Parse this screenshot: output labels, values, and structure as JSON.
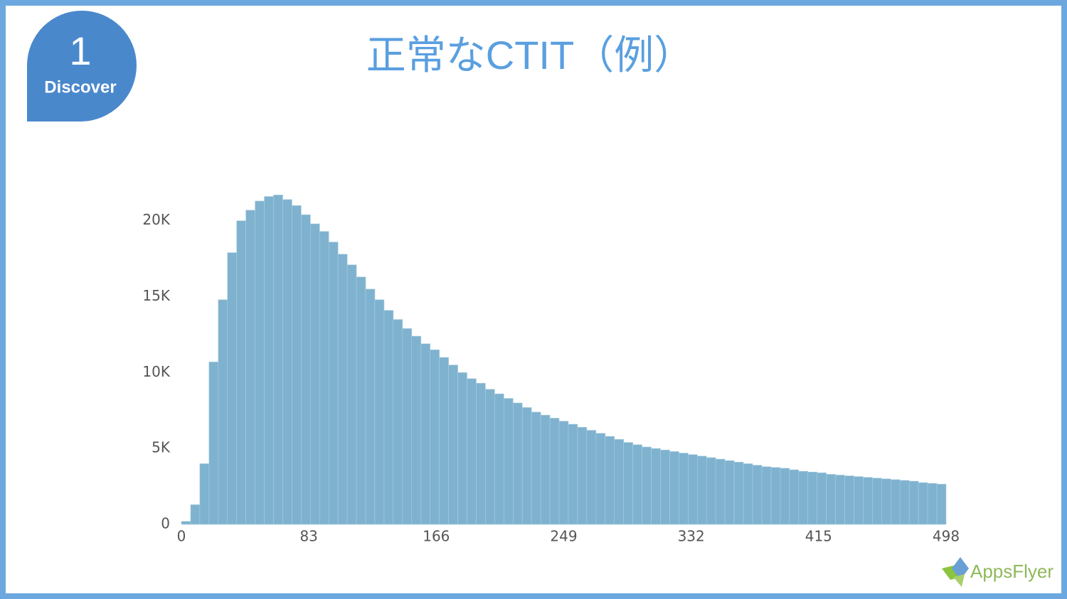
{
  "badge": {
    "number": "1",
    "label": "Discover"
  },
  "logo": "AppsFlyer",
  "chart_data": {
    "type": "histogram",
    "title": "正常なCTIT（例）",
    "bins": [
      0,
      6,
      12,
      18,
      24,
      30,
      36,
      42,
      48,
      54,
      60,
      66,
      72,
      78,
      84,
      90,
      96,
      102,
      108,
      114,
      120,
      126,
      132,
      138,
      144,
      150,
      156,
      162,
      168,
      174,
      180,
      186,
      192,
      198,
      204,
      210,
      216,
      222,
      228,
      234,
      240,
      246,
      252,
      258,
      264,
      270,
      276,
      282,
      288,
      294,
      300,
      306,
      312,
      318,
      324,
      330,
      336,
      342,
      348,
      354,
      360,
      366,
      372,
      378,
      384,
      390,
      396,
      402,
      408,
      414,
      420,
      426,
      432,
      438,
      444,
      450,
      456,
      462,
      468,
      474,
      480,
      486,
      492,
      498
    ],
    "values": [
      200,
      1300,
      4000,
      10700,
      14800,
      17900,
      20000,
      20700,
      21300,
      21600,
      21700,
      21400,
      21000,
      20400,
      19800,
      19300,
      18600,
      17800,
      17100,
      16300,
      15500,
      14800,
      14100,
      13500,
      12900,
      12400,
      11900,
      11500,
      11000,
      10500,
      10000,
      9600,
      9300,
      8900,
      8600,
      8300,
      8000,
      7700,
      7400,
      7200,
      7000,
      6800,
      6600,
      6400,
      6200,
      6000,
      5800,
      5600,
      5400,
      5250,
      5100,
      5000,
      4900,
      4800,
      4700,
      4600,
      4500,
      4400,
      4300,
      4200,
      4100,
      4000,
      3900,
      3800,
      3750,
      3700,
      3600,
      3500,
      3450,
      3400,
      3300,
      3250,
      3200,
      3150,
      3100,
      3050,
      3000,
      2950,
      2900,
      2850,
      2750,
      2700,
      2650
    ],
    "color": "#7fb2cf",
    "xlim": [
      0,
      498
    ],
    "xticks": [
      0,
      83,
      166,
      249,
      332,
      415,
      498
    ],
    "ylim": [
      0,
      22000
    ],
    "yticks": [
      0,
      {
        "value": 5000,
        "label": "5K"
      },
      {
        "value": 10000,
        "label": "10K"
      },
      {
        "value": 15000,
        "label": "15K"
      },
      {
        "value": 20000,
        "label": "20K"
      }
    ],
    "grid": false
  }
}
